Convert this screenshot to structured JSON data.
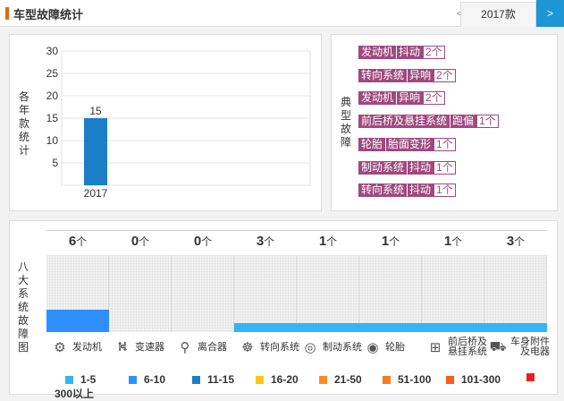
{
  "header": {
    "title": "车型故障统计",
    "prev": "<",
    "year_tab": "2017款",
    "next": ">"
  },
  "yearly_chart": {
    "yaxis_title": "各年款统计",
    "chart_data": {
      "type": "bar",
      "categories": [
        "2017"
      ],
      "values": [
        15
      ],
      "ylim": [
        0,
        30
      ],
      "yticks": [
        5,
        10,
        15,
        20,
        25,
        30
      ],
      "grid": true
    }
  },
  "typical_faults": {
    "title": "典型故障",
    "items": [
      {
        "system": "发动机",
        "fault": "抖动",
        "count": "2个"
      },
      {
        "system": "转向系统",
        "fault": "异响",
        "count": "2个"
      },
      {
        "system": "发动机",
        "fault": "异响",
        "count": "2个"
      },
      {
        "system": "前后桥及悬挂系统",
        "fault": "跑偏",
        "count": "1个"
      },
      {
        "system": "轮胎",
        "fault": "胎面变形",
        "count": "1个"
      },
      {
        "system": "制动系统",
        "fault": "抖动",
        "count": "1个"
      },
      {
        "system": "转向系统",
        "fault": "抖动",
        "count": "1个"
      }
    ]
  },
  "eight_systems": {
    "title": "八大系统故障图",
    "unit": "个",
    "systems": [
      {
        "label": "发动机",
        "label2": "",
        "value": "6",
        "level": 0.29,
        "color": "#2f8fff",
        "icon": "engine-icon",
        "glyph": "⚙"
      },
      {
        "label": "变速器",
        "label2": "",
        "value": "0",
        "level": 0,
        "color": "#2f8fff",
        "icon": "gearshift-icon",
        "glyph": "⛕"
      },
      {
        "label": "离合器",
        "label2": "",
        "value": "0",
        "level": 0,
        "color": "#2f8fff",
        "icon": "clutch-pedal-icon",
        "glyph": "⚲"
      },
      {
        "label": "转向系统",
        "label2": "",
        "value": "3",
        "level": 0.12,
        "color": "#33b5f5",
        "icon": "steering-wheel-icon",
        "glyph": "☸"
      },
      {
        "label": "制动系统",
        "label2": "",
        "value": "1",
        "level": 0.12,
        "color": "#33b5f5",
        "icon": "brake-disc-icon",
        "glyph": "◎"
      },
      {
        "label": "轮胎",
        "label2": "",
        "value": "1",
        "level": 0.12,
        "color": "#33b5f5",
        "icon": "tire-icon",
        "glyph": "◉"
      },
      {
        "label": "前后桥及",
        "label2": "悬挂系统",
        "value": "1",
        "level": 0.12,
        "color": "#33b5f5",
        "icon": "axle-icon",
        "glyph": "⊞"
      },
      {
        "label": "车身附件",
        "label2": "及电器",
        "value": "3",
        "level": 0.12,
        "color": "#33b5f5",
        "icon": "car-body-icon",
        "glyph": "⛟"
      }
    ],
    "legend": [
      {
        "label": "1-5",
        "color": "#33b5f5"
      },
      {
        "label": "6-10",
        "color": "#2f8fff"
      },
      {
        "label": "11-15",
        "color": "#1a7fc6"
      },
      {
        "label": "16-20",
        "color": "#ffc61a"
      },
      {
        "label": "21-50",
        "color": "#ff8c1a"
      },
      {
        "label": "51-100",
        "color": "#ff7a1a"
      },
      {
        "label": "101-300",
        "color": "#ff5a1a"
      },
      {
        "label": "300以上",
        "color": "#ee1c1c"
      }
    ]
  }
}
